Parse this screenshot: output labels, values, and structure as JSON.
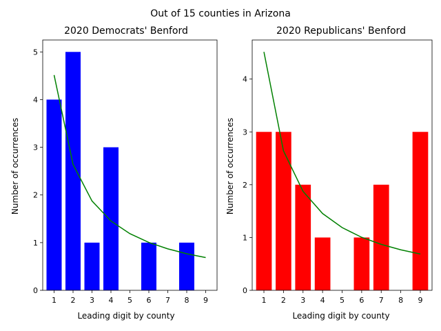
{
  "suptitle": "Out of 15 counties in Arizona",
  "chart_data": [
    {
      "type": "bar",
      "title": "2020 Democrats' Benford",
      "xlabel": "Leading digit by county",
      "ylabel": "Number of occurrences",
      "categories": [
        "1",
        "2",
        "3",
        "4",
        "5",
        "6",
        "7",
        "8",
        "9"
      ],
      "values": [
        4,
        5,
        1,
        3,
        0,
        1,
        0,
        1,
        0
      ],
      "bar_color": "#0000ff",
      "ylim": [
        0,
        5.25
      ],
      "yticks": [
        0,
        1,
        2,
        3,
        4,
        5
      ],
      "expected": {
        "color": "#008000",
        "values": [
          4.515,
          2.641,
          1.874,
          1.454,
          1.188,
          1.004,
          0.87,
          0.767,
          0.687
        ]
      }
    },
    {
      "type": "bar",
      "title": "2020 Republicans' Benford",
      "xlabel": "Leading digit by county",
      "ylabel": "Number of occurrences",
      "categories": [
        "1",
        "2",
        "3",
        "4",
        "5",
        "6",
        "7",
        "8",
        "9"
      ],
      "values": [
        3,
        3,
        2,
        1,
        0,
        1,
        2,
        0,
        3
      ],
      "bar_color": "#ff0000",
      "ylim": [
        0,
        4.74
      ],
      "yticks": [
        0,
        1,
        2,
        3,
        4
      ],
      "expected": {
        "color": "#008000",
        "values": [
          4.515,
          2.641,
          1.874,
          1.454,
          1.188,
          1.004,
          0.87,
          0.767,
          0.687
        ]
      }
    }
  ]
}
